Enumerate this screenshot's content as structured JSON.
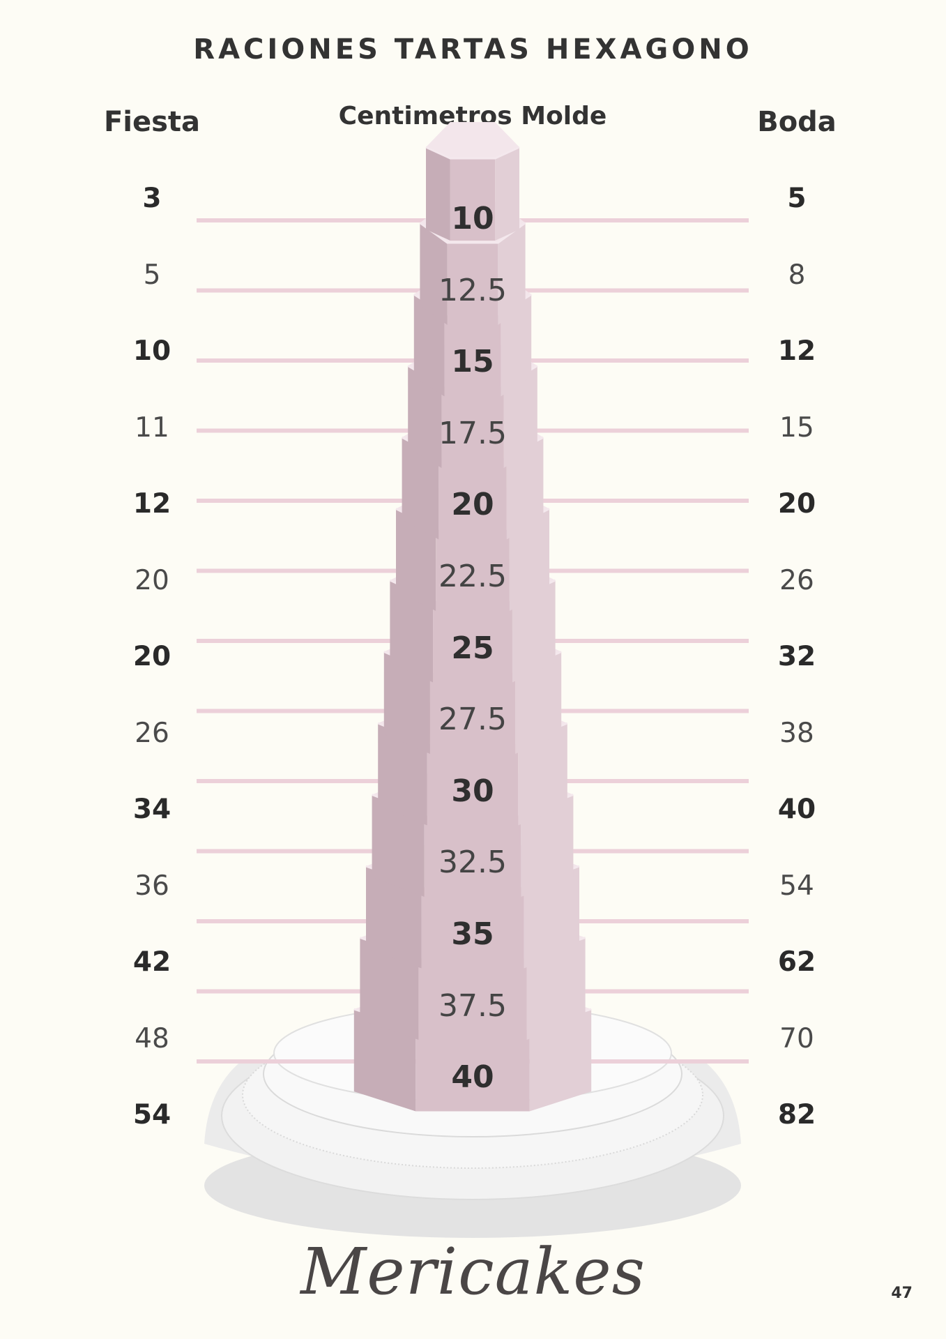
{
  "title": "RACIONES TARTAS HEXAGONO",
  "headers": {
    "left": "Fiesta",
    "center": "Centimetros Molde",
    "right": "Boda"
  },
  "rows": [
    {
      "fiesta": "3",
      "size": "10",
      "boda": "5",
      "bold": true
    },
    {
      "fiesta": "5",
      "size": "12.5",
      "boda": "8",
      "bold": false
    },
    {
      "fiesta": "10",
      "size": "15",
      "boda": "12",
      "bold": true
    },
    {
      "fiesta": "11",
      "size": "17.5",
      "boda": "15",
      "bold": false
    },
    {
      "fiesta": "12",
      "size": "20",
      "boda": "20",
      "bold": true
    },
    {
      "fiesta": "20",
      "size": "22.5",
      "boda": "26",
      "bold": false
    },
    {
      "fiesta": "20",
      "size": "25",
      "boda": "32",
      "bold": true
    },
    {
      "fiesta": "26",
      "size": "27.5",
      "boda": "38",
      "bold": false
    },
    {
      "fiesta": "34",
      "size": "30",
      "boda": "40",
      "bold": true
    },
    {
      "fiesta": "36",
      "size": "32.5",
      "boda": "54",
      "bold": false
    },
    {
      "fiesta": "42",
      "size": "35",
      "boda": "62",
      "bold": true
    },
    {
      "fiesta": "48",
      "size": "37.5",
      "boda": "70",
      "bold": false
    },
    {
      "fiesta": "54",
      "size": "40",
      "boda": "82",
      "bold": true
    }
  ],
  "colors": {
    "background": "#fdfcf5",
    "guide_line": "#ecd0d9",
    "tier_front": "#d8c0c9",
    "tier_left": "#c6adb7",
    "tier_right": "#e2cfd6",
    "tier_top": "#f3e6eb",
    "stand": "#ececec"
  },
  "logo": "Mericakes",
  "page_number": "47"
}
